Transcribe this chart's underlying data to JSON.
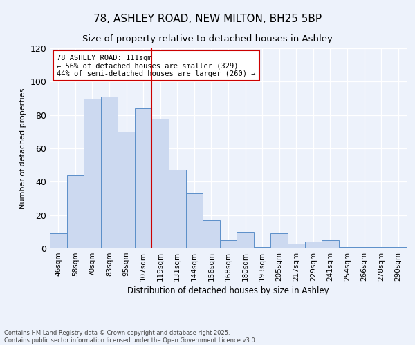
{
  "title1": "78, ASHLEY ROAD, NEW MILTON, BH25 5BP",
  "title2": "Size of property relative to detached houses in Ashley",
  "xlabel": "Distribution of detached houses by size in Ashley",
  "ylabel": "Number of detached properties",
  "categories": [
    "46sqm",
    "58sqm",
    "70sqm",
    "83sqm",
    "95sqm",
    "107sqm",
    "119sqm",
    "131sqm",
    "144sqm",
    "156sqm",
    "168sqm",
    "180sqm",
    "193sqm",
    "205sqm",
    "217sqm",
    "229sqm",
    "241sqm",
    "254sqm",
    "266sqm",
    "278sqm",
    "290sqm"
  ],
  "values": [
    9,
    44,
    90,
    91,
    70,
    84,
    78,
    47,
    33,
    17,
    5,
    10,
    1,
    9,
    3,
    4,
    5,
    1,
    1,
    1,
    1
  ],
  "bar_color": "#ccd9f0",
  "bar_edge_color": "#5b8fc9",
  "vline_x": 5.5,
  "vline_color": "#cc0000",
  "annotation_text": "78 ASHLEY ROAD: 111sqm\n← 56% of detached houses are smaller (329)\n44% of semi-detached houses are larger (260) →",
  "annotation_box_color": "#ffffff",
  "annotation_box_edge": "#cc0000",
  "ylim": [
    0,
    120
  ],
  "yticks": [
    0,
    20,
    40,
    60,
    80,
    100,
    120
  ],
  "footer": "Contains HM Land Registry data © Crown copyright and database right 2025.\nContains public sector information licensed under the Open Government Licence v3.0.",
  "bg_color": "#edf2fb",
  "plot_bg_color": "#edf2fb",
  "title1_fontsize": 11,
  "title2_fontsize": 9.5,
  "ylabel_fontsize": 8,
  "xlabel_fontsize": 8.5,
  "annot_fontsize": 7.5,
  "footer_fontsize": 6
}
